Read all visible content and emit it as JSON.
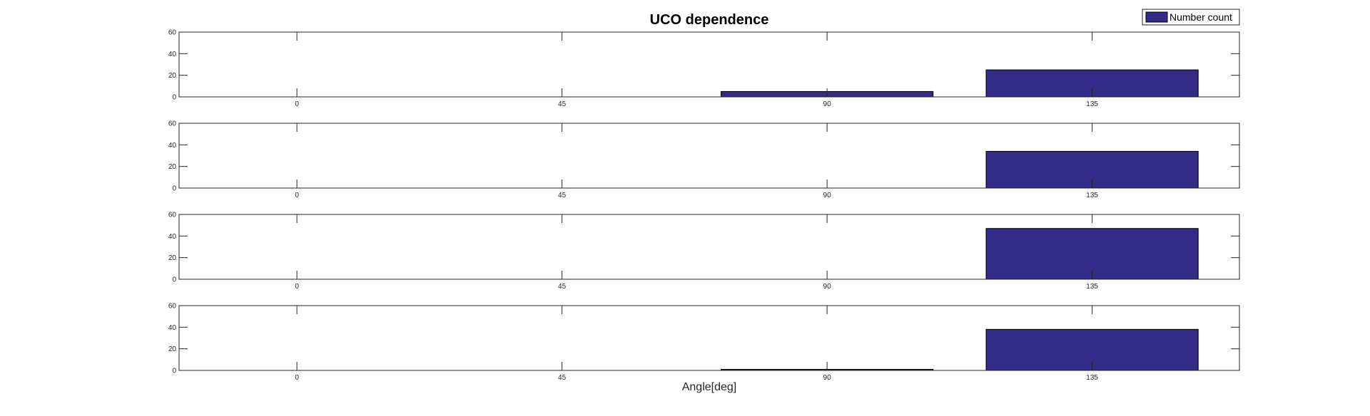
{
  "chart_data": {
    "type": "bar",
    "title": "UCO dependence",
    "xlabel": "Angle[deg]",
    "ylabel": "",
    "categories": [
      "0",
      "45",
      "90",
      "135"
    ],
    "x": [
      0,
      45,
      90,
      135
    ],
    "xlim": [
      -20,
      160
    ],
    "ylim": [
      0,
      60
    ],
    "yticks": [
      0,
      20,
      40,
      60
    ],
    "grid": false,
    "legend": {
      "position": "top-right",
      "entries": [
        "Number count"
      ]
    },
    "bar_color": "#332B87",
    "subplots": [
      {
        "series": [
          {
            "name": "Number count",
            "values": [
              0,
              0,
              5,
              25
            ]
          }
        ]
      },
      {
        "series": [
          {
            "name": "Number count",
            "values": [
              0,
              0,
              0,
              34
            ]
          }
        ]
      },
      {
        "series": [
          {
            "name": "Number count",
            "values": [
              0,
              0,
              0,
              47
            ]
          }
        ]
      },
      {
        "series": [
          {
            "name": "Number count",
            "values": [
              0,
              0,
              1,
              38
            ]
          }
        ]
      }
    ]
  }
}
